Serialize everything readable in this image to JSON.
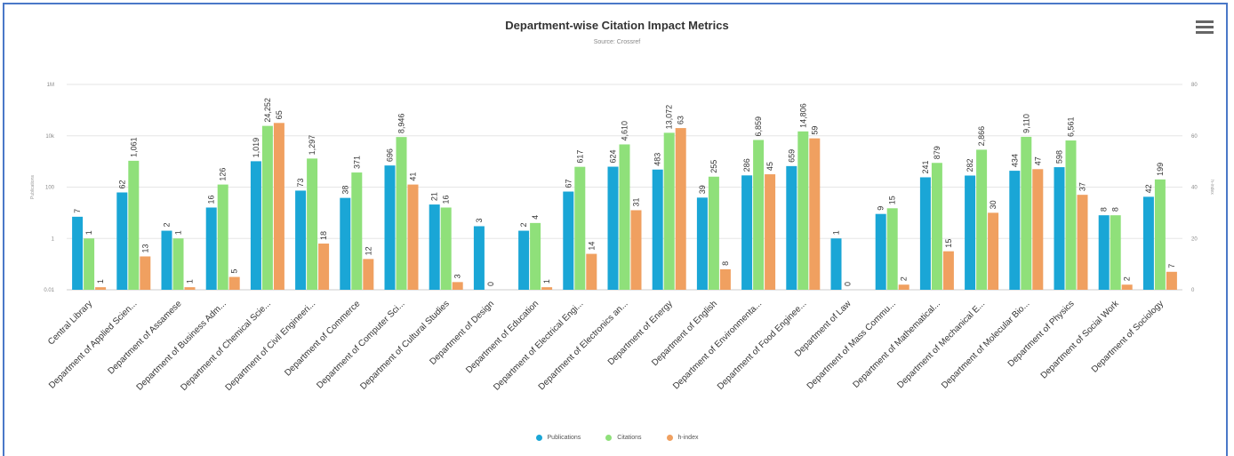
{
  "chart_data": {
    "type": "bar",
    "title": "Department-wise Citation Impact Metrics",
    "subtitle": "Source: Crossref",
    "y_left": {
      "label": "Publications",
      "scale": "log",
      "ticks": [
        "0.01",
        "1",
        "100",
        "10k",
        "1M"
      ],
      "tick_values": [
        0.01,
        1,
        100,
        10000,
        1000000
      ]
    },
    "y_right": {
      "label": "h-index",
      "scale": "linear",
      "ylim": [
        0,
        80
      ],
      "ticks": [
        "0",
        "20",
        "40",
        "60",
        "80"
      ]
    },
    "categories": [
      "Central Library",
      "Department of Applied Scien...",
      "Department of Assamese",
      "Department of Business Adm...",
      "Department of Chemical Scie...",
      "Department of Civil Engineeri...",
      "Department of Commerce",
      "Department of Computer Sci...",
      "Department of Cultural Studies",
      "Department of Design",
      "Department of Education",
      "Department of Electrical Engi...",
      "Department of Electronics an...",
      "Department of Energy",
      "Department of English",
      "Department of Environmenta...",
      "Department of Food Enginee...",
      "Department of Law",
      "Department of Mass Commu...",
      "Department of Mathematical...",
      "Department of Mechanical E...",
      "Department of Molecular Bio...",
      "Department of Physics",
      "Department of Social Work",
      "Department of Sociology"
    ],
    "series": [
      {
        "name": "Publications",
        "color": "#1aa6d6",
        "axis": "left",
        "values": [
          7,
          62,
          2,
          16,
          1019,
          73,
          38,
          696,
          21,
          3,
          2,
          67,
          624,
          483,
          39,
          286,
          659,
          1,
          9,
          241,
          282,
          434,
          598,
          8,
          42
        ],
        "labels": [
          "7",
          "62",
          "2",
          "16",
          "1,019",
          "73",
          "38",
          "696",
          "21",
          "3",
          "2",
          "67",
          "624",
          "483",
          "39",
          "286",
          "659",
          "1",
          "9",
          "241",
          "282",
          "434",
          "598",
          "8",
          "42"
        ]
      },
      {
        "name": "Citations",
        "color": "#8fe07a",
        "axis": "left",
        "values": [
          1,
          1061,
          1,
          126,
          24252,
          1297,
          371,
          8946,
          16,
          0,
          4,
          617,
          4610,
          13072,
          255,
          6859,
          14806,
          0,
          15,
          879,
          2866,
          9110,
          6561,
          8,
          199
        ],
        "labels": [
          "1",
          "1,061",
          "1",
          "126",
          "24,252",
          "1,297",
          "371",
          "8,946",
          "16",
          "0",
          "4",
          "617",
          "4,610",
          "13,072",
          "255",
          "6,859",
          "14,806",
          "0",
          "15",
          "879",
          "2,866",
          "9,110",
          "6,561",
          "8",
          "199"
        ]
      },
      {
        "name": "h-index",
        "color": "#f0a060",
        "axis": "right",
        "values": [
          1,
          13,
          1,
          5,
          65,
          18,
          12,
          41,
          3,
          0,
          1,
          14,
          31,
          63,
          8,
          45,
          59,
          0,
          2,
          15,
          30,
          47,
          37,
          2,
          7
        ],
        "labels": [
          "1",
          "13",
          "1",
          "5",
          "65",
          "18",
          "12",
          "41",
          "3",
          "",
          "1",
          "14",
          "31",
          "63",
          "8",
          "45",
          "59",
          "",
          "2",
          "15",
          "30",
          "47",
          "37",
          "2",
          "7"
        ]
      }
    ],
    "legend_position": "bottom-center",
    "grid": true
  },
  "menu_icon": "hamburger-icon"
}
